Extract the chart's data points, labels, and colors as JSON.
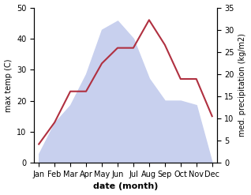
{
  "months": [
    "Jan",
    "Feb",
    "Mar",
    "Apr",
    "May",
    "Jun",
    "Jul",
    "Aug",
    "Sep",
    "Oct",
    "Nov",
    "Dec"
  ],
  "temperature": [
    6,
    13,
    23,
    23,
    32,
    37,
    37,
    46,
    38,
    27,
    27,
    15
  ],
  "precipitation": [
    2,
    9,
    13,
    20,
    30,
    32,
    28,
    19,
    14,
    14,
    13,
    0
  ],
  "temp_color": "#b03040",
  "precip_fill_color": "#c8d0ee",
  "left_ylim": [
    0,
    50
  ],
  "right_ylim": [
    0,
    35
  ],
  "left_yticks": [
    0,
    10,
    20,
    30,
    40,
    50
  ],
  "right_yticks": [
    0,
    5,
    10,
    15,
    20,
    25,
    30,
    35
  ],
  "left_ylabel": "max temp (C)",
  "right_ylabel": "med. precipitation (kg/m2)",
  "xlabel": "date (month)",
  "figsize": [
    3.18,
    2.47
  ],
  "dpi": 100
}
